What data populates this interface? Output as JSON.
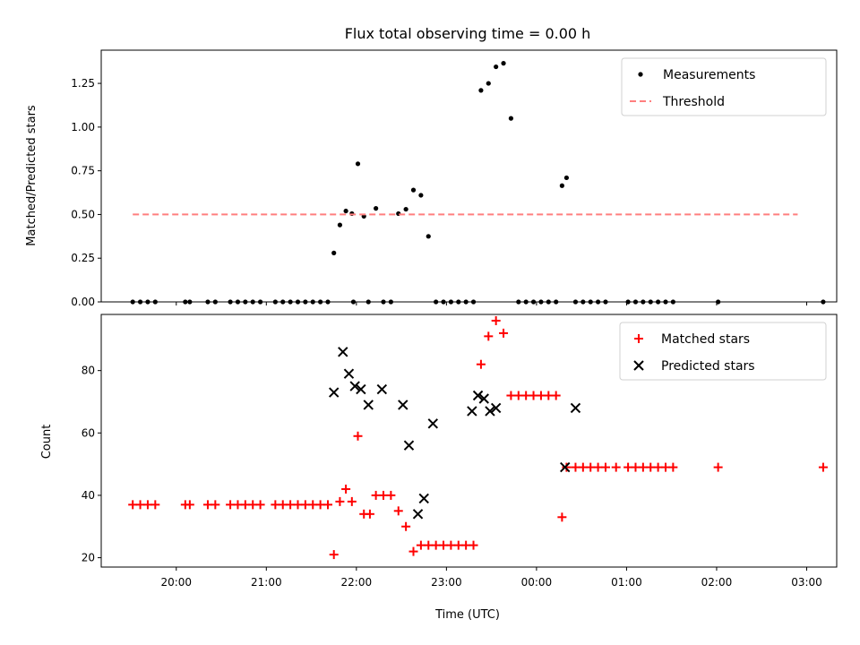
{
  "chart_data": [
    {
      "type": "scatter",
      "title": "Flux total observing time = 0.00 h",
      "xlabel": "",
      "ylabel": "Matched/Predicted stars",
      "xlim": [
        "19:10",
        "03:20"
      ],
      "ylim": [
        0,
        1.44
      ],
      "yticks": [
        "0.00",
        "0.25",
        "0.50",
        "0.75",
        "1.00",
        "1.25"
      ],
      "legend_position": "top-right",
      "series": [
        {
          "name": "Measurements",
          "style": "dot",
          "color": "#000000",
          "points": [
            [
              "19:31",
              0
            ],
            [
              "19:36",
              0
            ],
            [
              "19:41",
              0
            ],
            [
              "19:46",
              0
            ],
            [
              "20:06",
              0
            ],
            [
              "20:09",
              0
            ],
            [
              "20:21",
              0
            ],
            [
              "20:26",
              0
            ],
            [
              "20:36",
              0
            ],
            [
              "20:41",
              0
            ],
            [
              "20:46",
              0
            ],
            [
              "20:51",
              0
            ],
            [
              "20:56",
              0
            ],
            [
              "21:06",
              0
            ],
            [
              "21:11",
              0
            ],
            [
              "21:16",
              0
            ],
            [
              "21:21",
              0
            ],
            [
              "21:26",
              0
            ],
            [
              "21:31",
              0
            ],
            [
              "21:36",
              0
            ],
            [
              "21:41",
              0
            ],
            [
              "21:45",
              0.28
            ],
            [
              "21:49",
              0.44
            ],
            [
              "21:53",
              0.52
            ],
            [
              "21:57",
              0.505
            ],
            [
              "22:01",
              0.79
            ],
            [
              "22:05",
              0.49
            ],
            [
              "22:13",
              0.535
            ],
            [
              "22:28",
              0.505
            ],
            [
              "22:33",
              0.53
            ],
            [
              "22:38",
              0.64
            ],
            [
              "22:43",
              0.61
            ],
            [
              "22:48",
              0.375
            ],
            [
              "21:58",
              0
            ],
            [
              "22:08",
              0
            ],
            [
              "22:18",
              0
            ],
            [
              "22:23",
              0
            ],
            [
              "22:53",
              0
            ],
            [
              "22:58",
              0
            ],
            [
              "23:03",
              0
            ],
            [
              "23:08",
              0
            ],
            [
              "23:13",
              0
            ],
            [
              "23:18",
              0
            ],
            [
              "23:23",
              1.21
            ],
            [
              "23:28",
              1.25
            ],
            [
              "23:33",
              1.345
            ],
            [
              "23:38",
              1.365
            ],
            [
              "23:43",
              1.05
            ],
            [
              "23:48",
              0
            ],
            [
              "23:53",
              0
            ],
            [
              "23:58",
              0
            ],
            [
              "24:03",
              0
            ],
            [
              "24:08",
              0
            ],
            [
              "24:13",
              0
            ],
            [
              "24:17",
              0.665
            ],
            [
              "24:20",
              0.71
            ],
            [
              "24:26",
              0
            ],
            [
              "24:31",
              0
            ],
            [
              "24:36",
              0
            ],
            [
              "24:41",
              0
            ],
            [
              "24:46",
              0
            ],
            [
              "25:01",
              0
            ],
            [
              "25:06",
              0
            ],
            [
              "25:11",
              0
            ],
            [
              "25:16",
              0
            ],
            [
              "25:21",
              0
            ],
            [
              "25:26",
              0
            ],
            [
              "25:31",
              0
            ],
            [
              "26:01",
              0
            ],
            [
              "27:11",
              0
            ]
          ]
        },
        {
          "name": "Threshold",
          "style": "dashed-line",
          "color": "#ff7f7f",
          "points": [
            [
              "19:31",
              0.5
            ],
            [
              "26:54",
              0.5
            ]
          ]
        }
      ]
    },
    {
      "type": "scatter",
      "title": "",
      "xlabel": "Time (UTC)",
      "ylabel": "Count",
      "xlim": [
        "19:10",
        "03:20"
      ],
      "ylim": [
        17,
        98
      ],
      "yticks": [
        "20",
        "40",
        "60",
        "80"
      ],
      "xticks": [
        "20:00",
        "21:00",
        "22:00",
        "23:00",
        "00:00",
        "01:00",
        "02:00",
        "03:00"
      ],
      "legend_position": "top-right",
      "series": [
        {
          "name": "Matched stars",
          "style": "plus",
          "color": "#ff0000",
          "points": [
            [
              "19:31",
              37
            ],
            [
              "19:36",
              37
            ],
            [
              "19:41",
              37
            ],
            [
              "19:46",
              37
            ],
            [
              "20:06",
              37
            ],
            [
              "20:09",
              37
            ],
            [
              "20:21",
              37
            ],
            [
              "20:26",
              37
            ],
            [
              "20:36",
              37
            ],
            [
              "20:41",
              37
            ],
            [
              "20:46",
              37
            ],
            [
              "20:51",
              37
            ],
            [
              "20:56",
              37
            ],
            [
              "21:06",
              37
            ],
            [
              "21:11",
              37
            ],
            [
              "21:16",
              37
            ],
            [
              "21:21",
              37
            ],
            [
              "21:26",
              37
            ],
            [
              "21:31",
              37
            ],
            [
              "21:36",
              37
            ],
            [
              "21:41",
              37
            ],
            [
              "21:45",
              21
            ],
            [
              "21:49",
              38
            ],
            [
              "21:53",
              42
            ],
            [
              "21:57",
              38
            ],
            [
              "22:01",
              59
            ],
            [
              "22:05",
              34
            ],
            [
              "22:09",
              34
            ],
            [
              "22:13",
              40
            ],
            [
              "22:18",
              40
            ],
            [
              "22:23",
              40
            ],
            [
              "22:28",
              35
            ],
            [
              "22:33",
              30
            ],
            [
              "22:38",
              22
            ],
            [
              "22:43",
              24
            ],
            [
              "22:48",
              24
            ],
            [
              "22:53",
              24
            ],
            [
              "22:58",
              24
            ],
            [
              "23:03",
              24
            ],
            [
              "23:08",
              24
            ],
            [
              "23:13",
              24
            ],
            [
              "23:18",
              24
            ],
            [
              "23:23",
              82
            ],
            [
              "23:28",
              91
            ],
            [
              "23:33",
              96
            ],
            [
              "23:38",
              92
            ],
            [
              "23:43",
              72
            ],
            [
              "23:48",
              72
            ],
            [
              "23:53",
              72
            ],
            [
              "23:58",
              72
            ],
            [
              "24:03",
              72
            ],
            [
              "24:08",
              72
            ],
            [
              "24:13",
              72
            ],
            [
              "24:17",
              33
            ],
            [
              "24:20",
              49
            ],
            [
              "24:26",
              49
            ],
            [
              "24:31",
              49
            ],
            [
              "24:36",
              49
            ],
            [
              "24:41",
              49
            ],
            [
              "24:46",
              49
            ],
            [
              "24:53",
              49
            ],
            [
              "25:01",
              49
            ],
            [
              "25:06",
              49
            ],
            [
              "25:11",
              49
            ],
            [
              "25:16",
              49
            ],
            [
              "25:21",
              49
            ],
            [
              "25:26",
              49
            ],
            [
              "25:31",
              49
            ],
            [
              "26:01",
              49
            ],
            [
              "27:11",
              49
            ]
          ]
        },
        {
          "name": "Predicted stars",
          "style": "x",
          "color": "#000000",
          "points": [
            [
              "21:45",
              73
            ],
            [
              "21:51",
              86
            ],
            [
              "21:55",
              79
            ],
            [
              "21:59",
              75
            ],
            [
              "22:03",
              74
            ],
            [
              "22:08",
              69
            ],
            [
              "22:17",
              74
            ],
            [
              "22:31",
              69
            ],
            [
              "22:35",
              56
            ],
            [
              "22:41",
              34
            ],
            [
              "22:45",
              39
            ],
            [
              "22:51",
              63
            ],
            [
              "23:17",
              67
            ],
            [
              "23:21",
              72
            ],
            [
              "23:25",
              71
            ],
            [
              "23:29",
              67
            ],
            [
              "23:33",
              68
            ],
            [
              "24:19",
              49
            ],
            [
              "24:26",
              68
            ]
          ]
        }
      ]
    }
  ]
}
